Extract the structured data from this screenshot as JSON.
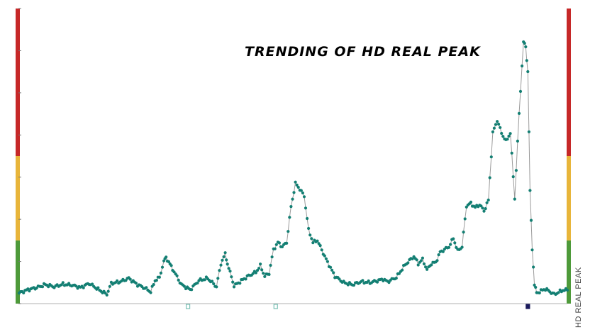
{
  "colors": {
    "zone_red": "#c62828",
    "zone_yellow": "#e8b53a",
    "zone_green": "#4e9a3a",
    "series": "#137f73",
    "line": "#9a9a9a",
    "axis": "#b0b0b0",
    "marker_teal": "#7cc1b6",
    "marker_navy": "#1a1a5c"
  },
  "chart_data": {
    "type": "line",
    "title": "TRENDING OF HD REAL PEAK",
    "ylabel": "HD REAL PEAK",
    "xlabel": "",
    "grid": false,
    "xlim": [
      0,
      250
    ],
    "ylim": [
      0,
      7
    ],
    "zones": [
      {
        "name": "green",
        "from": 0,
        "to": 1.5
      },
      {
        "name": "yellow",
        "from": 1.5,
        "to": 3.5
      },
      {
        "name": "red",
        "from": 3.5,
        "to": 7
      }
    ],
    "markers": [
      {
        "x": 77,
        "color": "teal"
      },
      {
        "x": 117,
        "color": "teal"
      },
      {
        "x": 232,
        "color": "navy"
      }
    ],
    "anchors": [
      [
        0,
        0.25
      ],
      [
        4,
        0.33
      ],
      [
        8,
        0.38
      ],
      [
        12,
        0.45
      ],
      [
        16,
        0.4
      ],
      [
        20,
        0.46
      ],
      [
        24,
        0.44
      ],
      [
        28,
        0.38
      ],
      [
        32,
        0.48
      ],
      [
        36,
        0.34
      ],
      [
        40,
        0.22
      ],
      [
        42,
        0.48
      ],
      [
        46,
        0.52
      ],
      [
        50,
        0.6
      ],
      [
        54,
        0.45
      ],
      [
        58,
        0.35
      ],
      [
        60,
        0.28
      ],
      [
        62,
        0.55
      ],
      [
        64,
        0.62
      ],
      [
        66,
        1.0
      ],
      [
        67,
        1.1
      ],
      [
        70,
        0.82
      ],
      [
        74,
        0.45
      ],
      [
        78,
        0.33
      ],
      [
        82,
        0.55
      ],
      [
        86,
        0.6
      ],
      [
        90,
        0.4
      ],
      [
        92,
        0.95
      ],
      [
        94,
        1.18
      ],
      [
        95,
        0.95
      ],
      [
        98,
        0.42
      ],
      [
        104,
        0.64
      ],
      [
        108,
        0.75
      ],
      [
        110,
        0.9
      ],
      [
        112,
        0.65
      ],
      [
        114,
        0.72
      ],
      [
        116,
        1.28
      ],
      [
        118,
        1.45
      ],
      [
        120,
        1.35
      ],
      [
        122,
        1.45
      ],
      [
        124,
        2.3
      ],
      [
        126,
        2.85
      ],
      [
        128,
        2.72
      ],
      [
        130,
        2.55
      ],
      [
        132,
        1.75
      ],
      [
        134,
        1.45
      ],
      [
        136,
        1.5
      ],
      [
        140,
        1.05
      ],
      [
        144,
        0.65
      ],
      [
        148,
        0.5
      ],
      [
        152,
        0.45
      ],
      [
        156,
        0.52
      ],
      [
        160,
        0.5
      ],
      [
        164,
        0.55
      ],
      [
        166,
        0.58
      ],
      [
        168,
        0.52
      ],
      [
        172,
        0.62
      ],
      [
        176,
        0.92
      ],
      [
        180,
        1.12
      ],
      [
        182,
        0.95
      ],
      [
        184,
        1.05
      ],
      [
        186,
        0.8
      ],
      [
        188,
        0.95
      ],
      [
        190,
        0.98
      ],
      [
        192,
        1.22
      ],
      [
        196,
        1.35
      ],
      [
        198,
        1.55
      ],
      [
        200,
        1.25
      ],
      [
        202,
        1.35
      ],
      [
        204,
        2.32
      ],
      [
        206,
        2.38
      ],
      [
        208,
        2.28
      ],
      [
        210,
        2.35
      ],
      [
        212,
        2.2
      ],
      [
        214,
        2.45
      ],
      [
        216,
        4.05
      ],
      [
        218,
        4.35
      ],
      [
        220,
        4.05
      ],
      [
        222,
        3.85
      ],
      [
        224,
        4.05
      ],
      [
        226,
        2.5
      ],
      [
        228,
        4.5
      ],
      [
        230,
        6.2
      ],
      [
        231,
        6.1
      ],
      [
        232,
        5.5
      ],
      [
        233,
        2.65
      ],
      [
        234,
        1.3
      ],
      [
        235,
        0.45
      ],
      [
        236,
        0.25
      ],
      [
        240,
        0.35
      ],
      [
        244,
        0.22
      ],
      [
        248,
        0.32
      ],
      [
        250,
        0.32
      ]
    ]
  }
}
